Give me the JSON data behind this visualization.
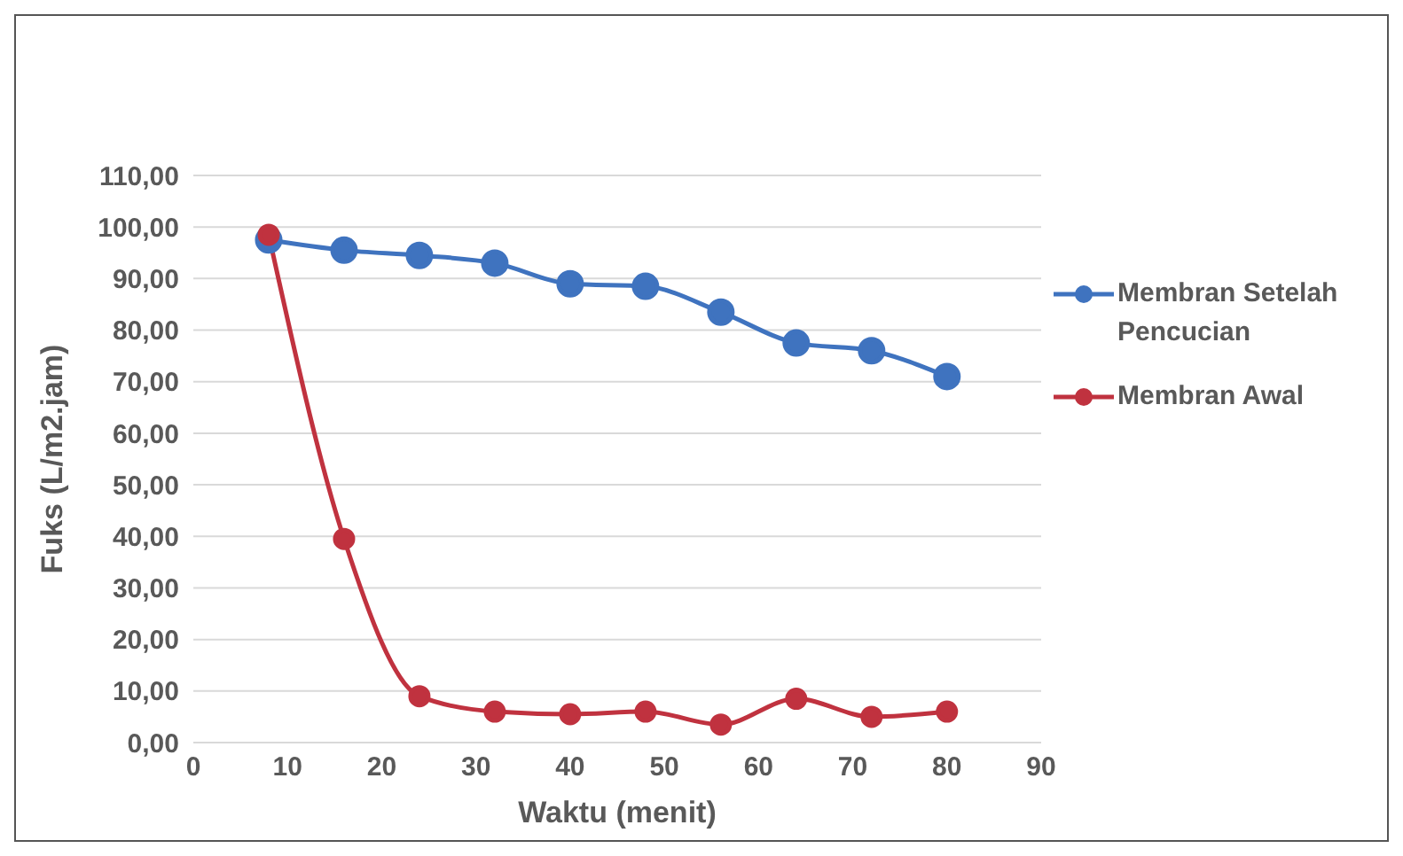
{
  "chart_data": {
    "type": "line",
    "xlabel": "Waktu (menit)",
    "ylabel": "Fuks (L/m2.jam)",
    "x": [
      8,
      16,
      24,
      32,
      40,
      48,
      56,
      64,
      72,
      80
    ],
    "series": [
      {
        "name": "Membran Setelah Pencucian",
        "color": "#3f73bf",
        "values": [
          97.5,
          95.5,
          94.5,
          93,
          89,
          88.5,
          83.5,
          77.5,
          76,
          71
        ]
      },
      {
        "name": "Membran Awal",
        "color": "#c0323f",
        "values": [
          98.5,
          39.5,
          9,
          6,
          5.5,
          6,
          3.5,
          8.5,
          5,
          6
        ]
      }
    ],
    "xlim": [
      0,
      90
    ],
    "xticks": [
      0,
      10,
      20,
      30,
      40,
      50,
      60,
      70,
      80,
      90
    ],
    "ylim": [
      0,
      110
    ],
    "yticks": [
      {
        "value": 0,
        "label": "0,00"
      },
      {
        "value": 10,
        "label": "10,00"
      },
      {
        "value": 20,
        "label": "20,00"
      },
      {
        "value": 30,
        "label": "30,00"
      },
      {
        "value": 40,
        "label": "40,00"
      },
      {
        "value": 50,
        "label": "50,00"
      },
      {
        "value": 60,
        "label": "60,00"
      },
      {
        "value": 70,
        "label": "70,00"
      },
      {
        "value": 80,
        "label": "80,00"
      },
      {
        "value": 90,
        "label": "90,00"
      },
      {
        "value": 100,
        "label": "100,00"
      },
      {
        "value": 110,
        "label": "110,00"
      }
    ],
    "grid": "y",
    "legend": "right",
    "marker": "circle",
    "line_style": "solid"
  }
}
